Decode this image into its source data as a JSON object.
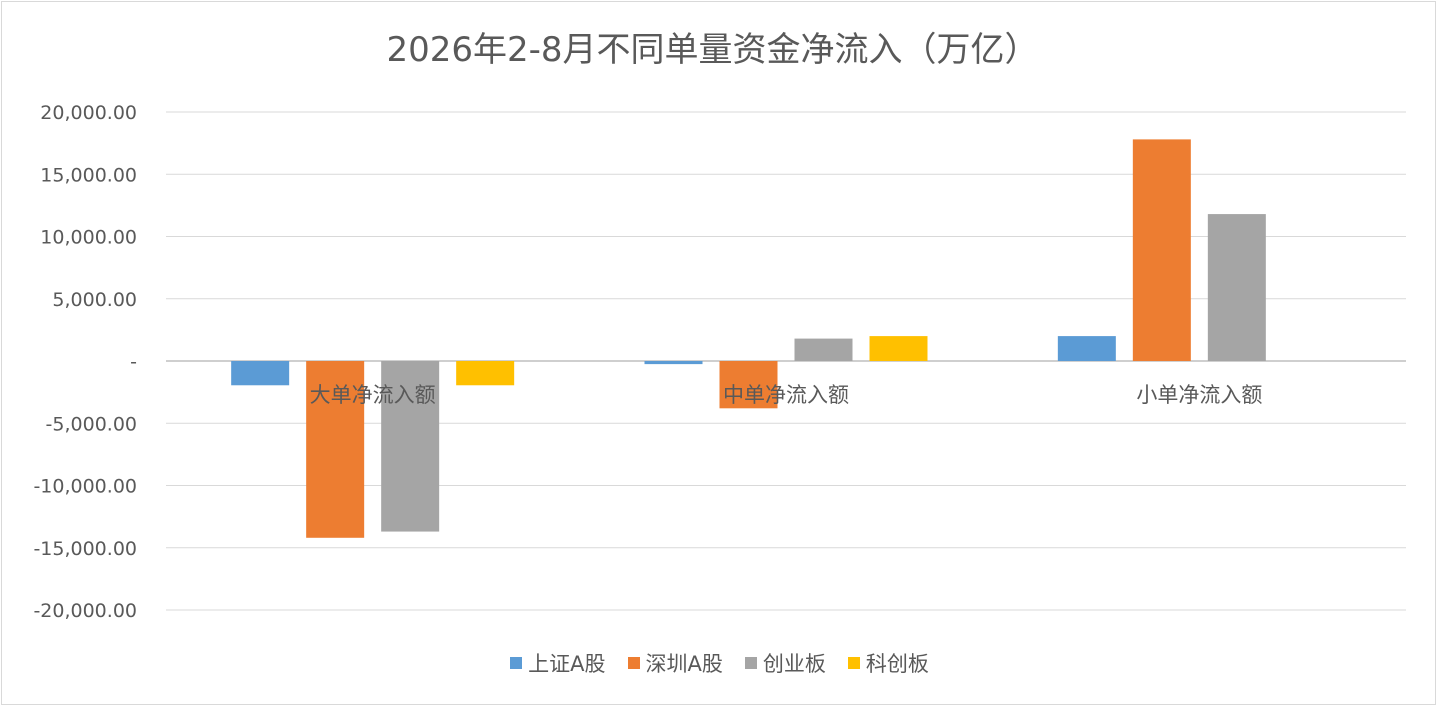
{
  "chart_data": {
    "type": "bar",
    "title": "2026年2-8月不同单量资金净流入（万亿）",
    "categories": [
      "大单净流入额",
      "中单净流入额",
      "小单净流入额"
    ],
    "series": [
      {
        "name": "上证A股",
        "color": "#5b9bd5",
        "values": [
          -1950,
          -250,
          2000
        ]
      },
      {
        "name": "深圳A股",
        "color": "#ed7d31",
        "values": [
          -14200,
          -3800,
          17800
        ]
      },
      {
        "name": "创业板",
        "color": "#a5a5a5",
        "values": [
          -13700,
          1800,
          11800
        ]
      },
      {
        "name": "科创板",
        "color": "#ffc000",
        "values": [
          -1950,
          2000,
          0
        ]
      }
    ],
    "yticks": [
      "20,000.00",
      "15,000.00",
      "10,000.00",
      "5,000.00",
      "-",
      "-5,000.00",
      "-10,000.00",
      "-15,000.00",
      "-20,000.00"
    ],
    "ylim": [
      -20000,
      20000
    ],
    "grid": true,
    "legend_position": "bottom"
  }
}
